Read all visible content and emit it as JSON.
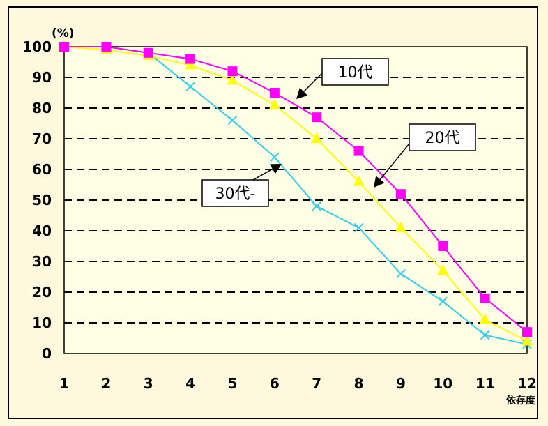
{
  "chart_data": {
    "type": "line",
    "title": "",
    "ylabel": "(%)",
    "xlabel": "依存度",
    "x": [
      1,
      2,
      3,
      4,
      5,
      6,
      7,
      8,
      9,
      10,
      11,
      12
    ],
    "xlim": [
      1,
      12
    ],
    "ylim": [
      0,
      100
    ],
    "yticks": [
      0,
      10,
      20,
      30,
      40,
      50,
      60,
      70,
      80,
      90,
      100
    ],
    "grid": "dashed horizontal",
    "series": [
      {
        "name": "10代",
        "color": "#ff00ff",
        "marker": "square",
        "values": [
          100,
          100,
          98,
          96,
          92,
          85,
          77,
          66,
          52,
          35,
          18,
          7
        ]
      },
      {
        "name": "20代",
        "color": "#ffff00",
        "marker": "triangle",
        "values": [
          100,
          99,
          97,
          94,
          89,
          81,
          70,
          56,
          41,
          27,
          11,
          4
        ]
      },
      {
        "name": "30代-",
        "color": "#33ccee",
        "marker": "x",
        "values": [
          100,
          100,
          98,
          87,
          76,
          64,
          48,
          41,
          26,
          17,
          6,
          3
        ]
      }
    ]
  },
  "colors": {
    "background": "#fef9dd",
    "plot_area": "#ffffe6"
  }
}
